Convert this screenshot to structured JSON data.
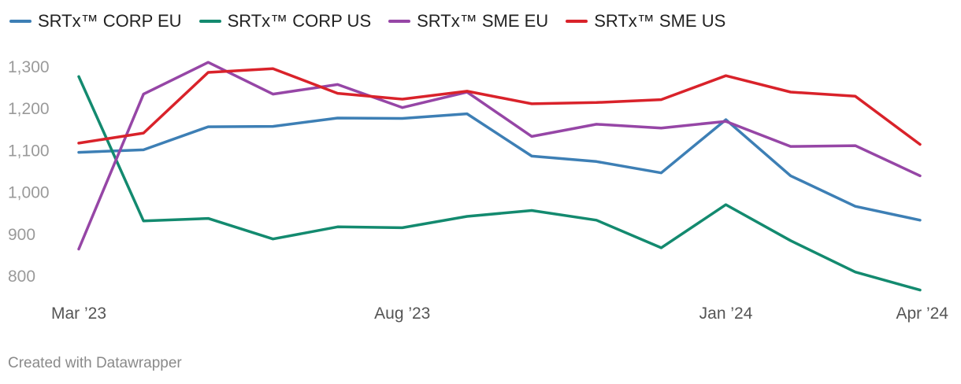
{
  "chart_data": {
    "type": "line",
    "x": [
      "Mar '23",
      "Apr '23",
      "May '23",
      "Jun '23",
      "Jul '23",
      "Aug '23",
      "Sep '23",
      "Oct '23",
      "Nov '23",
      "Dec '23",
      "Jan '24",
      "Feb '24",
      "Mar '24",
      "Apr '24"
    ],
    "x_tick_labels": [
      {
        "label": "Mar ’23",
        "index": 0
      },
      {
        "label": "Aug ’23",
        "index": 5
      },
      {
        "label": "Jan ’24",
        "index": 10
      },
      {
        "label": "Apr ’24",
        "index": 13
      }
    ],
    "y_ticks": [
      800,
      900,
      1000,
      1100,
      1200,
      1300
    ],
    "y_tick_labels": [
      "800",
      "900",
      "1,000",
      "1,100",
      "1,200",
      "1,300"
    ],
    "ylim": [
      760,
      1330
    ],
    "legend_position": "top-left",
    "series": [
      {
        "name": "SRTx™ CORP EU",
        "color": "#3d7fb5",
        "values": [
          1094,
          1100,
          1155,
          1156,
          1176,
          1175,
          1186,
          1085,
          1072,
          1045,
          1172,
          1038,
          965,
          932
        ]
      },
      {
        "name": "SRTx™ CORP US",
        "color": "#138a6f",
        "values": [
          1275,
          930,
          936,
          887,
          916,
          914,
          941,
          955,
          932,
          866,
          969,
          883,
          808,
          765
        ]
      },
      {
        "name": "SRTx™ SME EU",
        "color": "#9646a6",
        "values": [
          863,
          1233,
          1309,
          1233,
          1256,
          1201,
          1238,
          1132,
          1161,
          1152,
          1168,
          1108,
          1110,
          1038
        ]
      },
      {
        "name": "SRTx™ SME US",
        "color": "#d9222a",
        "values": [
          1116,
          1140,
          1285,
          1294,
          1235,
          1221,
          1240,
          1210,
          1213,
          1220,
          1277,
          1238,
          1228,
          1113
        ]
      }
    ]
  },
  "footer": "Created with Datawrapper"
}
